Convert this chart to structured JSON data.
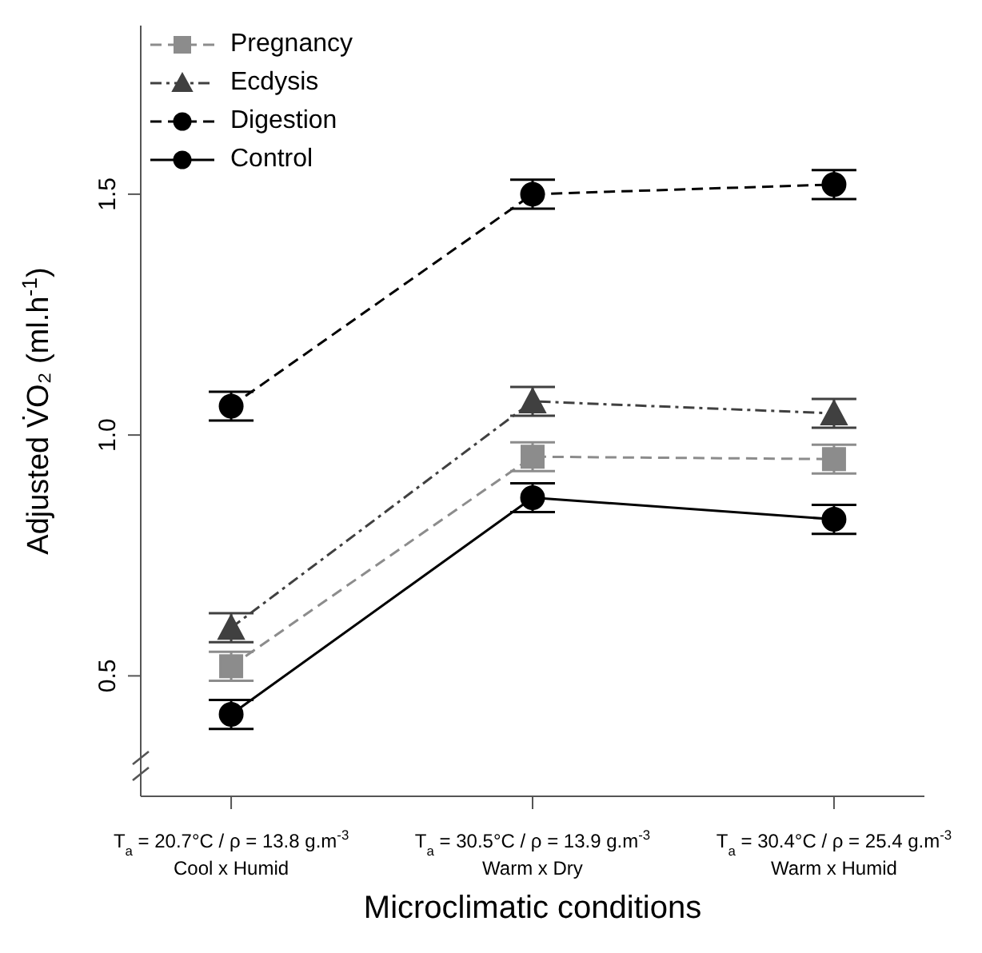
{
  "chart_data": {
    "type": "line",
    "xlabel": "Microclimatic conditions",
    "ylabel": "Adjusted V̇O₂ (ml.h$^{-1}$)",
    "categories": [
      "T$_{a}$ = 20.7°C / ρ = 13.8 g.m$^{-3}$\nCool x Humid",
      "T$_{a}$ = 30.5°C / ρ = 13.9 g.m$^{-3}$\nWarm x Dry",
      "T$_{a}$ = 30.4°C / ρ = 25.4 g.m$^{-3}$\nWarm x Humid"
    ],
    "ylim": [
      0.25,
      1.85
    ],
    "yticks": [
      {
        "value": 0.5,
        "label": "0.5"
      },
      {
        "value": 1.0,
        "label": "1.0"
      },
      {
        "value": 1.5,
        "label": "1.5"
      }
    ],
    "series": [
      {
        "name": "Pregnancy",
        "color": "#8c8c8c",
        "values": [
          0.52,
          0.955,
          0.95
        ],
        "errors": [
          0.03,
          0.03,
          0.03
        ],
        "marker": "square",
        "line_style": "dashed"
      },
      {
        "name": "Ecdysis",
        "color": "#404040",
        "values": [
          0.6,
          1.07,
          1.045
        ],
        "errors": [
          0.03,
          0.03,
          0.03
        ],
        "marker": "triangle",
        "line_style": "dotted"
      },
      {
        "name": "Digestion",
        "color": "#000000",
        "values": [
          1.06,
          1.5,
          1.52
        ],
        "errors": [
          0.03,
          0.03,
          0.03
        ],
        "marker": "circle",
        "line_style": "dashed"
      },
      {
        "name": "Control",
        "color": "#000000",
        "values": [
          0.42,
          0.87,
          0.825
        ],
        "errors": [
          0.03,
          0.03,
          0.03
        ],
        "marker": "circle",
        "line_style": "solid"
      }
    ],
    "grid": false,
    "legend": "top left"
  }
}
